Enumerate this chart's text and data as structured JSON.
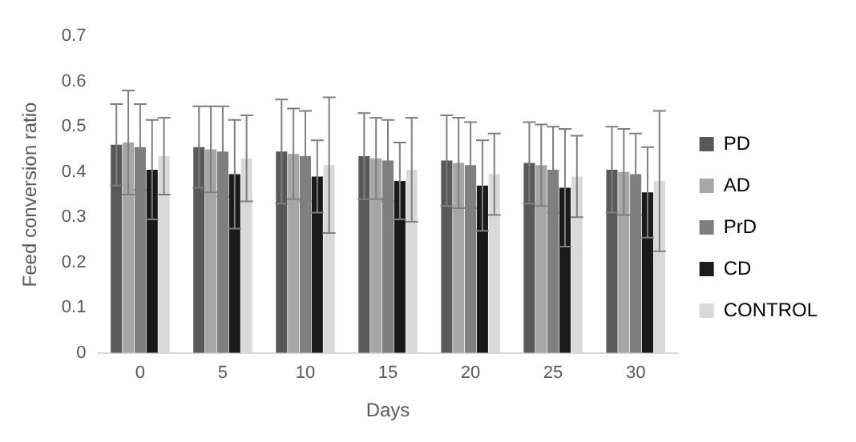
{
  "chart_data": {
    "type": "bar",
    "xlabel": "Days",
    "ylabel": "Feed conversion ratio",
    "categories": [
      "0",
      "5",
      "10",
      "15",
      "20",
      "25",
      "30"
    ],
    "ylim": [
      0,
      0.7
    ],
    "yticks": [
      0,
      0.1,
      0.2,
      0.3,
      0.4,
      0.5,
      0.6,
      0.7
    ],
    "grid": false,
    "legend": "right",
    "series": [
      {
        "name": "PD",
        "color": "#595959",
        "values": [
          0.46,
          0.455,
          0.445,
          0.435,
          0.425,
          0.42,
          0.405
        ],
        "errors": [
          0.09,
          0.09,
          0.115,
          0.095,
          0.1,
          0.09,
          0.095
        ]
      },
      {
        "name": "AD",
        "color": "#a6a6a6",
        "values": [
          0.465,
          0.45,
          0.44,
          0.43,
          0.42,
          0.415,
          0.4
        ],
        "errors": [
          0.115,
          0.095,
          0.1,
          0.09,
          0.1,
          0.09,
          0.095
        ]
      },
      {
        "name": "PrD",
        "color": "#7f7f7f",
        "values": [
          0.455,
          0.445,
          0.435,
          0.425,
          0.415,
          0.405,
          0.395
        ],
        "errors": [
          0.095,
          0.1,
          0.1,
          0.09,
          0.095,
          0.095,
          0.09
        ]
      },
      {
        "name": "CD",
        "color": "#1a1a1a",
        "values": [
          0.405,
          0.395,
          0.39,
          0.38,
          0.37,
          0.365,
          0.355
        ],
        "errors": [
          0.11,
          0.12,
          0.08,
          0.085,
          0.1,
          0.13,
          0.1
        ]
      },
      {
        "name": "CONTROL",
        "color": "#d9d9d9",
        "values": [
          0.435,
          0.43,
          0.415,
          0.405,
          0.395,
          0.39,
          0.38
        ],
        "errors": [
          0.085,
          0.095,
          0.15,
          0.115,
          0.09,
          0.09,
          0.155
        ]
      }
    ]
  }
}
